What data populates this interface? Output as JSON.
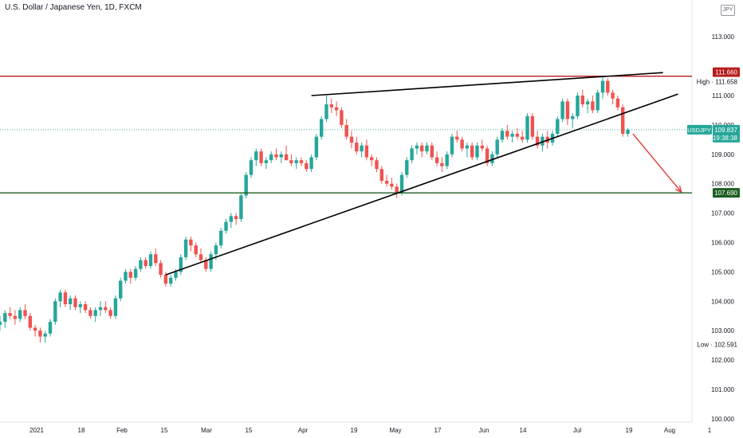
{
  "header": {
    "title": "U.S. Dollar / Japanese Yen, 1D, FXCM",
    "currency_badge": "JPY"
  },
  "chart_data": {
    "type": "candlestick",
    "symbol": "USDJPY",
    "ylim": [
      100.0,
      114.0
    ],
    "y_ticks": [
      "100.000",
      "101.000",
      "102.000",
      "103.000",
      "104.000",
      "105.000",
      "106.000",
      "107.000",
      "108.000",
      "109.000",
      "110.000",
      "111.000",
      "113.000"
    ],
    "x_ticks": [
      "2021",
      "18",
      "Feb",
      "15",
      "Mar",
      "15",
      "Apr",
      "19",
      "May",
      "17",
      "Jun",
      "14",
      "Jul",
      "19",
      "Aug",
      "1"
    ],
    "labels": {
      "resistance": "111.660",
      "support": "107.690",
      "high": "High · 111.658",
      "low": "Low · 102.591",
      "last_symbol": "USDJPY",
      "last_price": "109.837",
      "countdown": "19:38:38"
    },
    "levels": {
      "resistance": 111.66,
      "support": 107.69,
      "last": 109.837
    },
    "colors": {
      "up": "#26a69a",
      "down": "#ef5350",
      "resistance": "#b71c1c",
      "support": "#1b5e20",
      "last": "#26a69a",
      "arrow": "#e53935"
    },
    "candles": [
      [
        103.2,
        103.5,
        103.0,
        103.3
      ],
      [
        103.3,
        103.7,
        103.1,
        103.6
      ],
      [
        103.6,
        103.8,
        103.4,
        103.5
      ],
      [
        103.5,
        103.7,
        103.2,
        103.4
      ],
      [
        103.4,
        103.8,
        103.3,
        103.7
      ],
      [
        103.7,
        103.9,
        103.4,
        103.5
      ],
      [
        103.5,
        103.6,
        103.0,
        103.1
      ],
      [
        103.1,
        103.2,
        102.8,
        103.0
      ],
      [
        103.0,
        103.1,
        102.6,
        102.8
      ],
      [
        102.8,
        103.0,
        102.59,
        102.9
      ],
      [
        102.9,
        103.4,
        102.8,
        103.3
      ],
      [
        103.3,
        104.1,
        103.2,
        104.0
      ],
      [
        104.0,
        104.4,
        103.8,
        104.3
      ],
      [
        104.3,
        104.4,
        103.8,
        103.9
      ],
      [
        103.9,
        104.2,
        103.7,
        104.1
      ],
      [
        104.1,
        104.2,
        103.7,
        103.8
      ],
      [
        103.8,
        104.0,
        103.6,
        103.9
      ],
      [
        103.9,
        104.0,
        103.6,
        103.7
      ],
      [
        103.7,
        103.8,
        103.4,
        103.5
      ],
      [
        103.5,
        103.8,
        103.3,
        103.7
      ],
      [
        103.7,
        104.0,
        103.5,
        103.8
      ],
      [
        103.8,
        104.0,
        103.6,
        103.7
      ],
      [
        103.7,
        103.8,
        103.4,
        103.5
      ],
      [
        103.5,
        104.2,
        103.4,
        104.1
      ],
      [
        104.1,
        104.8,
        104.0,
        104.7
      ],
      [
        104.7,
        105.1,
        104.6,
        105.0
      ],
      [
        105.0,
        105.1,
        104.6,
        104.8
      ],
      [
        104.8,
        105.2,
        104.7,
        105.1
      ],
      [
        105.1,
        105.5,
        105.0,
        105.4
      ],
      [
        105.4,
        105.5,
        105.1,
        105.2
      ],
      [
        105.2,
        105.7,
        105.1,
        105.6
      ],
      [
        105.6,
        105.8,
        105.2,
        105.3
      ],
      [
        105.3,
        105.4,
        104.8,
        104.9
      ],
      [
        104.9,
        105.0,
        104.5,
        104.6
      ],
      [
        104.6,
        104.9,
        104.5,
        104.8
      ],
      [
        104.8,
        105.1,
        104.7,
        105.0
      ],
      [
        105.0,
        105.6,
        104.9,
        105.5
      ],
      [
        105.5,
        106.2,
        105.4,
        106.1
      ],
      [
        106.1,
        106.2,
        105.7,
        105.9
      ],
      [
        105.9,
        106.0,
        105.5,
        105.6
      ],
      [
        105.6,
        105.8,
        105.3,
        105.4
      ],
      [
        105.4,
        105.5,
        105.0,
        105.1
      ],
      [
        105.1,
        105.7,
        105.0,
        105.6
      ],
      [
        105.6,
        106.0,
        105.4,
        105.9
      ],
      [
        105.9,
        106.5,
        105.8,
        106.4
      ],
      [
        106.4,
        106.8,
        106.3,
        106.7
      ],
      [
        106.7,
        107.0,
        106.5,
        106.9
      ],
      [
        106.9,
        107.0,
        106.6,
        106.8
      ],
      [
        106.8,
        107.7,
        106.7,
        107.6
      ],
      [
        107.6,
        108.4,
        107.5,
        108.3
      ],
      [
        108.3,
        108.9,
        108.2,
        108.8
      ],
      [
        108.8,
        109.2,
        108.6,
        109.1
      ],
      [
        109.1,
        109.2,
        108.6,
        108.7
      ],
      [
        108.7,
        108.9,
        108.5,
        108.8
      ],
      [
        108.8,
        109.1,
        108.7,
        109.0
      ],
      [
        109.0,
        109.2,
        108.8,
        108.9
      ],
      [
        108.9,
        109.1,
        108.7,
        109.0
      ],
      [
        109.0,
        109.3,
        108.8,
        108.8
      ],
      [
        108.8,
        109.0,
        108.6,
        108.7
      ],
      [
        108.7,
        108.9,
        108.5,
        108.8
      ],
      [
        108.8,
        108.9,
        108.6,
        108.7
      ],
      [
        108.7,
        108.8,
        108.4,
        108.5
      ],
      [
        108.5,
        109.0,
        108.4,
        108.9
      ],
      [
        108.9,
        109.7,
        108.8,
        109.6
      ],
      [
        109.6,
        110.3,
        109.5,
        110.2
      ],
      [
        110.2,
        111.0,
        110.1,
        110.7
      ],
      [
        110.7,
        110.9,
        110.4,
        110.6
      ],
      [
        110.6,
        110.8,
        110.3,
        110.5
      ],
      [
        110.5,
        110.6,
        109.9,
        110.0
      ],
      [
        110.0,
        110.2,
        109.5,
        109.6
      ],
      [
        109.6,
        109.8,
        109.2,
        109.4
      ],
      [
        109.4,
        109.6,
        109.0,
        109.1
      ],
      [
        109.1,
        109.4,
        108.9,
        109.3
      ],
      [
        109.3,
        109.5,
        108.8,
        108.9
      ],
      [
        108.9,
        109.0,
        108.6,
        108.8
      ],
      [
        108.8,
        108.9,
        108.4,
        108.5
      ],
      [
        108.5,
        108.6,
        108.0,
        108.1
      ],
      [
        108.1,
        108.3,
        107.9,
        108.0
      ],
      [
        108.0,
        108.2,
        107.8,
        107.9
      ],
      [
        107.9,
        108.0,
        107.5,
        107.7
      ],
      [
        107.7,
        108.4,
        107.6,
        108.3
      ],
      [
        108.3,
        108.9,
        108.2,
        108.8
      ],
      [
        108.8,
        109.3,
        108.7,
        109.2
      ],
      [
        109.2,
        109.4,
        109.0,
        109.3
      ],
      [
        109.3,
        109.4,
        108.9,
        109.1
      ],
      [
        109.1,
        109.4,
        109.0,
        109.3
      ],
      [
        109.3,
        109.4,
        108.8,
        108.9
      ],
      [
        108.9,
        109.1,
        108.6,
        108.7
      ],
      [
        108.7,
        108.9,
        108.4,
        108.6
      ],
      [
        108.6,
        109.1,
        108.5,
        109.0
      ],
      [
        109.0,
        109.7,
        108.9,
        109.6
      ],
      [
        109.6,
        109.8,
        109.4,
        109.5
      ],
      [
        109.5,
        109.6,
        109.1,
        109.2
      ],
      [
        109.2,
        109.4,
        108.9,
        109.3
      ],
      [
        109.3,
        109.4,
        108.8,
        108.9
      ],
      [
        108.9,
        109.4,
        108.8,
        109.3
      ],
      [
        109.3,
        109.5,
        109.1,
        109.2
      ],
      [
        109.2,
        109.3,
        108.6,
        108.7
      ],
      [
        108.7,
        109.1,
        108.6,
        109.0
      ],
      [
        109.0,
        109.6,
        108.9,
        109.5
      ],
      [
        109.5,
        109.9,
        109.4,
        109.8
      ],
      [
        109.8,
        110.0,
        109.5,
        109.6
      ],
      [
        109.6,
        109.8,
        109.4,
        109.7
      ],
      [
        109.7,
        109.9,
        109.5,
        109.6
      ],
      [
        109.6,
        109.8,
        109.4,
        109.5
      ],
      [
        109.5,
        110.4,
        109.4,
        110.3
      ],
      [
        110.3,
        110.4,
        109.5,
        109.6
      ],
      [
        109.6,
        109.8,
        109.2,
        109.3
      ],
      [
        109.3,
        109.7,
        109.1,
        109.6
      ],
      [
        109.6,
        109.8,
        109.2,
        109.4
      ],
      [
        109.4,
        109.8,
        109.3,
        109.7
      ],
      [
        109.7,
        110.3,
        109.6,
        110.2
      ],
      [
        110.2,
        110.9,
        110.1,
        110.8
      ],
      [
        110.8,
        110.9,
        110.0,
        110.2
      ],
      [
        110.2,
        110.4,
        109.9,
        110.3
      ],
      [
        110.3,
        111.1,
        110.2,
        111.0
      ],
      [
        111.0,
        111.2,
        110.6,
        110.7
      ],
      [
        110.7,
        110.9,
        110.4,
        110.8
      ],
      [
        110.8,
        111.0,
        110.4,
        110.5
      ],
      [
        110.5,
        111.2,
        110.4,
        111.1
      ],
      [
        111.1,
        111.658,
        110.9,
        111.5
      ],
      [
        111.5,
        111.6,
        111.0,
        111.1
      ],
      [
        111.1,
        111.2,
        110.7,
        110.9
      ],
      [
        110.9,
        111.0,
        110.5,
        110.6
      ],
      [
        110.6,
        110.7,
        109.6,
        109.7
      ],
      [
        109.7,
        109.9,
        109.6,
        109.837
      ]
    ],
    "trendlines": [
      {
        "x0": 62,
        "y0": 111.0,
        "x1": 132,
        "y1": 111.78
      },
      {
        "x0": 33,
        "y0": 104.9,
        "x1": 135,
        "y1": 111.05
      }
    ],
    "forecast_arrow": {
      "x0": 126,
      "y0": 109.7,
      "x1": 135,
      "y1": 107.72
    }
  }
}
